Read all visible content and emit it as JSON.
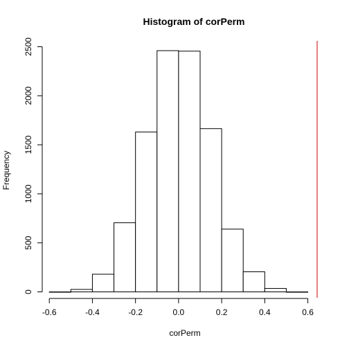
{
  "chart_data": {
    "type": "bar",
    "title": "Histogram of corPerm",
    "xlabel": "corPerm",
    "ylabel": "Frequency",
    "bins": [
      {
        "x0": -0.6,
        "x1": -0.5,
        "count": 0
      },
      {
        "x0": -0.5,
        "x1": -0.4,
        "count": 25
      },
      {
        "x0": -0.4,
        "x1": -0.3,
        "count": 180
      },
      {
        "x0": -0.3,
        "x1": -0.2,
        "count": 705
      },
      {
        "x0": -0.2,
        "x1": -0.1,
        "count": 1630
      },
      {
        "x0": -0.1,
        "x1": 0.0,
        "count": 2460
      },
      {
        "x0": 0.0,
        "x1": 0.1,
        "count": 2455
      },
      {
        "x0": 0.1,
        "x1": 0.2,
        "count": 1665
      },
      {
        "x0": 0.2,
        "x1": 0.3,
        "count": 640
      },
      {
        "x0": 0.3,
        "x1": 0.4,
        "count": 205
      },
      {
        "x0": 0.4,
        "x1": 0.5,
        "count": 35
      },
      {
        "x0": 0.5,
        "x1": 0.6,
        "count": 0
      }
    ],
    "x_ticks": [
      -0.6,
      -0.4,
      -0.2,
      0.0,
      0.2,
      0.4,
      0.6
    ],
    "x_tick_labels": [
      "-0.6",
      "-0.4",
      "-0.2",
      "0.0",
      "0.2",
      "0.4",
      "0.6"
    ],
    "y_ticks": [
      0,
      500,
      1000,
      1500,
      2000,
      2500
    ],
    "y_tick_labels": [
      "0",
      "500",
      "1000",
      "1500",
      "2000",
      "2500"
    ],
    "xlim": [
      -0.665,
      0.685
    ],
    "ylim": [
      -60,
      2560
    ],
    "grid": false,
    "reference_line": {
      "x": 0.685,
      "color": "#cc0000"
    },
    "bar_fill": "#ffffff",
    "bar_stroke": "#000000"
  }
}
